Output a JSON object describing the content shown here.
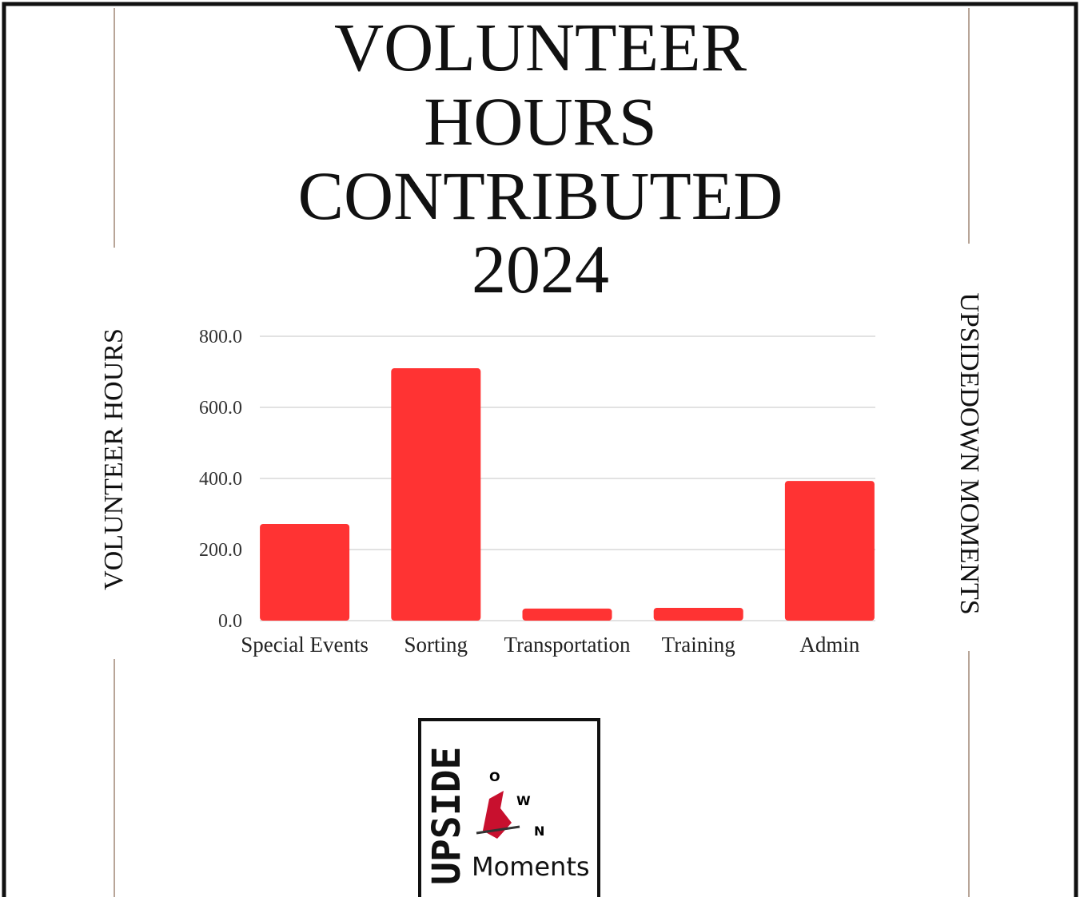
{
  "chart_data": {
    "type": "bar",
    "title": [
      "VOLUNTEER",
      "HOURS",
      "CONTRIBUTED",
      "2024"
    ],
    "y_label": "VOLUNTEER HOURS",
    "side_label": "UPSIDEDOWN MOMENTS",
    "categories": [
      "Special Events",
      "Sorting",
      "Transportation",
      "Training",
      "Admin"
    ],
    "values": [
      272,
      710,
      34,
      36,
      393
    ],
    "color": "#ff3333",
    "ylim": [
      0,
      800
    ],
    "yticks": [
      {
        "value": 0,
        "label": "0.0"
      },
      {
        "value": 200,
        "label": "200.0"
      },
      {
        "value": 400,
        "label": "400.0"
      },
      {
        "value": 600,
        "label": "600.0"
      },
      {
        "value": 800,
        "label": "800.0"
      }
    ],
    "grid": true
  },
  "logo": {
    "upside": "UPSIDE",
    "down": [
      "O",
      "W",
      "N"
    ],
    "moments": "Moments"
  }
}
